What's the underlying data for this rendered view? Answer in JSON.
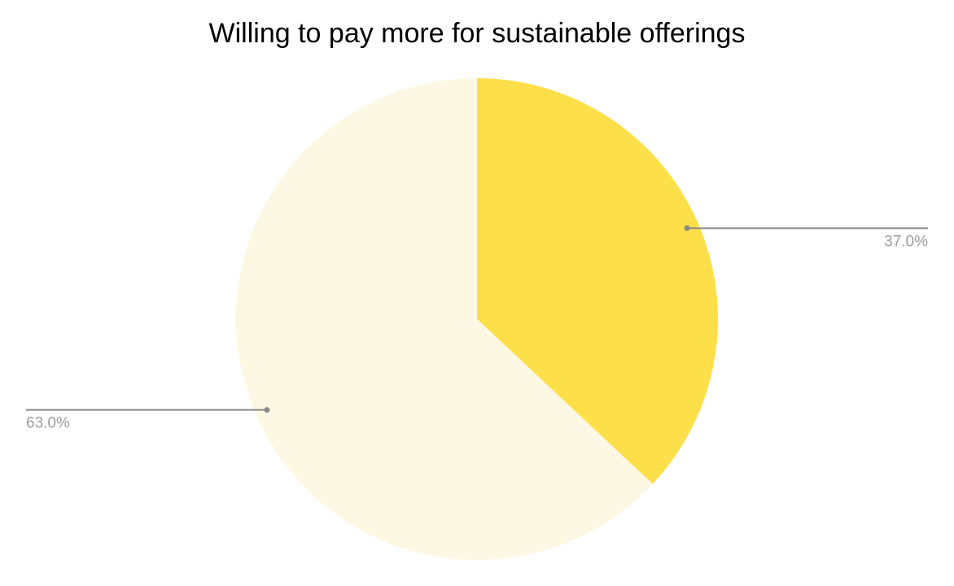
{
  "chart_data": {
    "type": "pie",
    "title": "Willing to pay more for sustainable offerings",
    "values": [
      37,
      63
    ],
    "value_labels": [
      "37.0%",
      "63.0%"
    ],
    "colors": [
      "#fddf4a",
      "#fdf8e3"
    ]
  }
}
